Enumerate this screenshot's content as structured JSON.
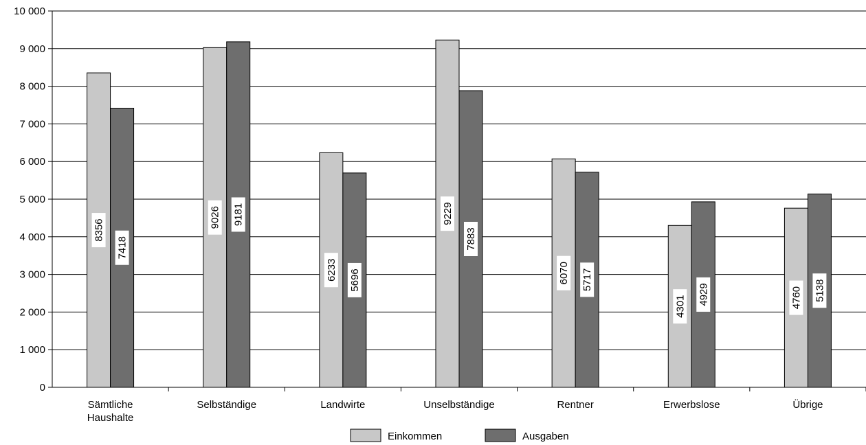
{
  "chart_data": {
    "type": "bar",
    "categories": [
      [
        "Sämtliche",
        "Haushalte"
      ],
      [
        "Selbständige"
      ],
      [
        "Landwirte"
      ],
      [
        "Unselbständige"
      ],
      [
        "Rentner"
      ],
      [
        "Erwerbslose"
      ],
      [
        "Übrige"
      ]
    ],
    "series": [
      {
        "name": "Einkommen",
        "color": "#c8c8c8",
        "values": [
          8356,
          9026,
          6233,
          9229,
          6070,
          4301,
          4760
        ]
      },
      {
        "name": "Ausgaben",
        "color": "#6e6e6e",
        "values": [
          7418,
          9181,
          5696,
          7883,
          5717,
          4929,
          5138
        ]
      }
    ],
    "y_ticks": [
      "0",
      "1 000",
      "2 000",
      "3 000",
      "4 000",
      "5 000",
      "6 000",
      "7 000",
      "8 000",
      "9 000",
      "10 000"
    ],
    "ylim": [
      0,
      10000
    ],
    "grid": true,
    "legend_position": "bottom-center",
    "data_labels": "vertical-inside-bars"
  }
}
